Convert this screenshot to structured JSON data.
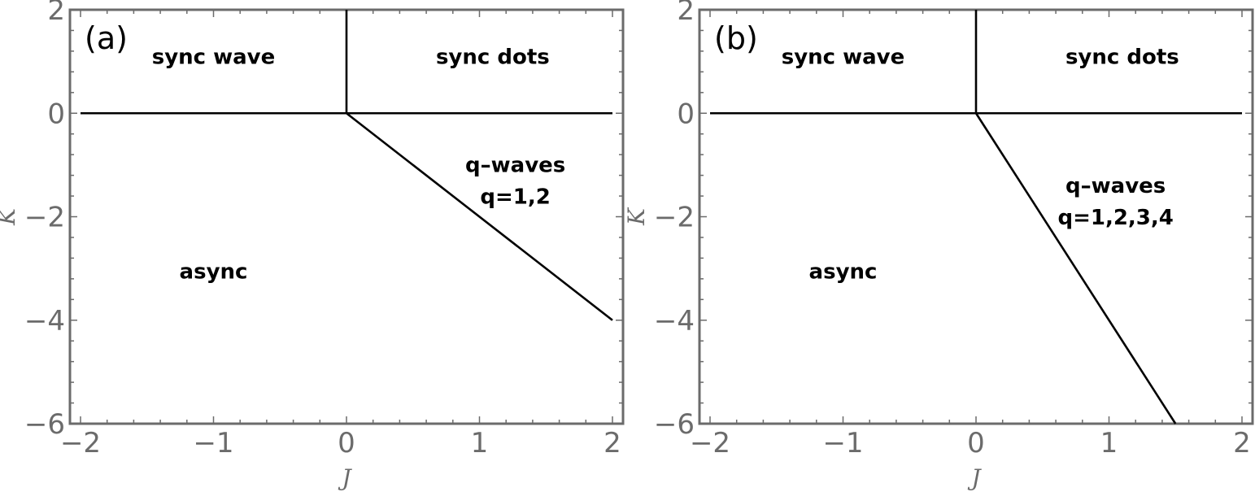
{
  "chart_data": [
    {
      "type": "line",
      "panel_label": "(a)",
      "xlabel": "J",
      "ylabel": "K",
      "xlim": [
        -2,
        2
      ],
      "ylim": [
        -6,
        2
      ],
      "xticks": [
        -2,
        -1,
        0,
        1,
        2
      ],
      "yticks": [
        -6,
        -4,
        -2,
        0,
        2
      ],
      "x_tick_labels": [
        "−2",
        "−1",
        "0",
        "1",
        "2"
      ],
      "y_tick_labels": [
        "−6",
        "−4",
        "−2",
        "0",
        "2"
      ],
      "frame_color": "#6b6b6b",
      "line_color": "#000000",
      "lines": [
        {
          "x": [
            -2,
            2
          ],
          "y": [
            0,
            0
          ]
        },
        {
          "x": [
            0,
            0
          ],
          "y": [
            0,
            2
          ]
        },
        {
          "x": [
            0,
            2
          ],
          "y": [
            0,
            -4
          ]
        }
      ],
      "annotations": [
        {
          "lines": [
            "sync wave"
          ],
          "x": -1.0,
          "y": 1.1
        },
        {
          "lines": [
            "sync dots"
          ],
          "x": 1.1,
          "y": 1.1
        },
        {
          "lines": [
            "q–waves",
            "q=1,2"
          ],
          "x": 1.27,
          "y": -1.3
        },
        {
          "lines": [
            "async"
          ],
          "x": -1.0,
          "y": -3.05
        }
      ]
    },
    {
      "type": "line",
      "panel_label": "(b)",
      "xlabel": "J",
      "ylabel": "K",
      "xlim": [
        -2,
        2
      ],
      "ylim": [
        -6,
        2
      ],
      "xticks": [
        -2,
        -1,
        0,
        1,
        2
      ],
      "yticks": [
        -6,
        -4,
        -2,
        0,
        2
      ],
      "x_tick_labels": [
        "−2",
        "−1",
        "0",
        "1",
        "2"
      ],
      "y_tick_labels": [
        "−6",
        "−4",
        "−2",
        "0",
        "2"
      ],
      "frame_color": "#6b6b6b",
      "line_color": "#000000",
      "lines": [
        {
          "x": [
            -2,
            2
          ],
          "y": [
            0,
            0
          ]
        },
        {
          "x": [
            0,
            0
          ],
          "y": [
            0,
            2
          ]
        },
        {
          "x": [
            0,
            1.5
          ],
          "y": [
            0,
            -6
          ]
        }
      ],
      "annotations": [
        {
          "lines": [
            "sync wave"
          ],
          "x": -1.0,
          "y": 1.1
        },
        {
          "lines": [
            "sync dots"
          ],
          "x": 1.1,
          "y": 1.1
        },
        {
          "lines": [
            "q–waves",
            "q=1,2,3,4"
          ],
          "x": 1.05,
          "y": -1.7
        },
        {
          "lines": [
            "async"
          ],
          "x": -1.0,
          "y": -3.05
        }
      ]
    }
  ]
}
